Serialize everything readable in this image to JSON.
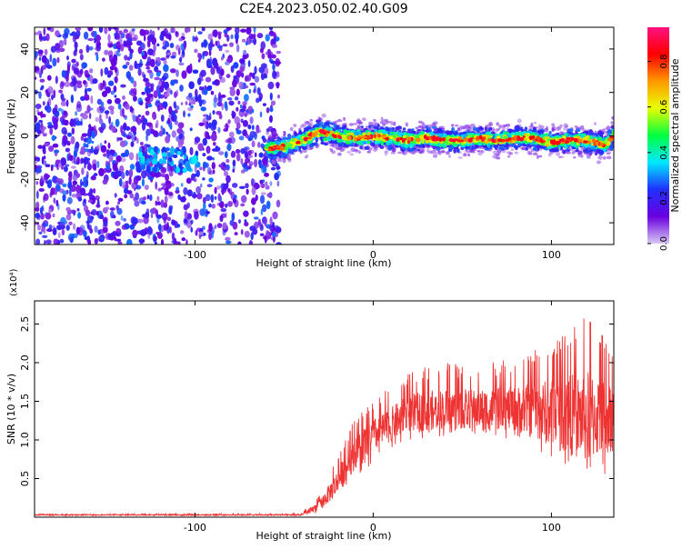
{
  "title": "C2E4.2023.050.02.40.G09",
  "chart_data": [
    {
      "type": "heatmap",
      "xlabel": "Height of straight line (km)",
      "ylabel": "Frequency (Hz)",
      "xlim": [
        -190,
        135
      ],
      "ylim": [
        -50,
        50
      ],
      "x_ticks": [
        -100,
        0,
        100
      ],
      "y_ticks": [
        -40,
        -20,
        0,
        20,
        40
      ],
      "colorbar": {
        "label": "Normalized spectral amplitude",
        "range": [
          0.0,
          0.95
        ],
        "ticks": [
          0.0,
          0.2,
          0.4,
          0.6,
          0.8
        ],
        "tick_labels": [
          "0.0",
          "0.2",
          "0.4",
          "0.6",
          "0.8"
        ],
        "colormap": [
          "#d8c8f4",
          "#6a00e0",
          "#2030ff",
          "#00e8ff",
          "#00ff40",
          "#e8ff00",
          "#ff9900",
          "#ff0000",
          "#ff1080"
        ]
      },
      "noise_region_x": [
        -190,
        -53
      ],
      "signal_track": [
        {
          "x": -60,
          "f": -6
        },
        {
          "x": -50,
          "f": -5
        },
        {
          "x": -40,
          "f": -2
        },
        {
          "x": -30,
          "f": 2
        },
        {
          "x": -20,
          "f": 0
        },
        {
          "x": -10,
          "f": -1
        },
        {
          "x": 0,
          "f": 0
        },
        {
          "x": 10,
          "f": -1
        },
        {
          "x": 20,
          "f": -2
        },
        {
          "x": 30,
          "f": -1
        },
        {
          "x": 40,
          "f": -2
        },
        {
          "x": 50,
          "f": -2
        },
        {
          "x": 60,
          "f": -1
        },
        {
          "x": 70,
          "f": -2
        },
        {
          "x": 80,
          "f": -1
        },
        {
          "x": 90,
          "f": -1
        },
        {
          "x": 100,
          "f": -3
        },
        {
          "x": 110,
          "f": -2
        },
        {
          "x": 120,
          "f": -2
        },
        {
          "x": 130,
          "f": -4
        },
        {
          "x": 135,
          "f": 0
        }
      ]
    },
    {
      "type": "line",
      "xlabel": "Height of straight line (km)",
      "ylabel": "SNR (10 * v/v)",
      "y_multiplier": "(x10⁴)",
      "xlim": [
        -190,
        135
      ],
      "ylim": [
        0,
        2.8
      ],
      "x_ticks": [
        -100,
        0,
        100
      ],
      "y_ticks": [
        0.5,
        1.0,
        1.5,
        2.0,
        2.5
      ],
      "y_tick_labels": [
        "0.5",
        "1.0",
        "1.5",
        "2.0",
        "2.5"
      ],
      "color": "#ee3333",
      "envelope": [
        {
          "x": -190,
          "lo": 0.02,
          "mid": 0.03,
          "hi": 0.04
        },
        {
          "x": -40,
          "lo": 0.02,
          "mid": 0.03,
          "hi": 0.05
        },
        {
          "x": -30,
          "lo": 0.05,
          "mid": 0.15,
          "hi": 0.3
        },
        {
          "x": -20,
          "lo": 0.2,
          "mid": 0.45,
          "hi": 0.8
        },
        {
          "x": -10,
          "lo": 0.5,
          "mid": 0.85,
          "hi": 1.3
        },
        {
          "x": 0,
          "lo": 0.7,
          "mid": 1.05,
          "hi": 1.5
        },
        {
          "x": 10,
          "lo": 0.9,
          "mid": 1.2,
          "hi": 1.7
        },
        {
          "x": 20,
          "lo": 1.0,
          "mid": 1.35,
          "hi": 1.9
        },
        {
          "x": 40,
          "lo": 1.05,
          "mid": 1.4,
          "hi": 2.0
        },
        {
          "x": 60,
          "lo": 1.05,
          "mid": 1.4,
          "hi": 2.0
        },
        {
          "x": 80,
          "lo": 1.0,
          "mid": 1.4,
          "hi": 2.05
        },
        {
          "x": 100,
          "lo": 0.7,
          "mid": 1.35,
          "hi": 2.3
        },
        {
          "x": 120,
          "lo": 0.4,
          "mid": 1.3,
          "hi": 2.6
        },
        {
          "x": 135,
          "lo": 0.6,
          "mid": 1.3,
          "hi": 2.2
        }
      ]
    }
  ]
}
